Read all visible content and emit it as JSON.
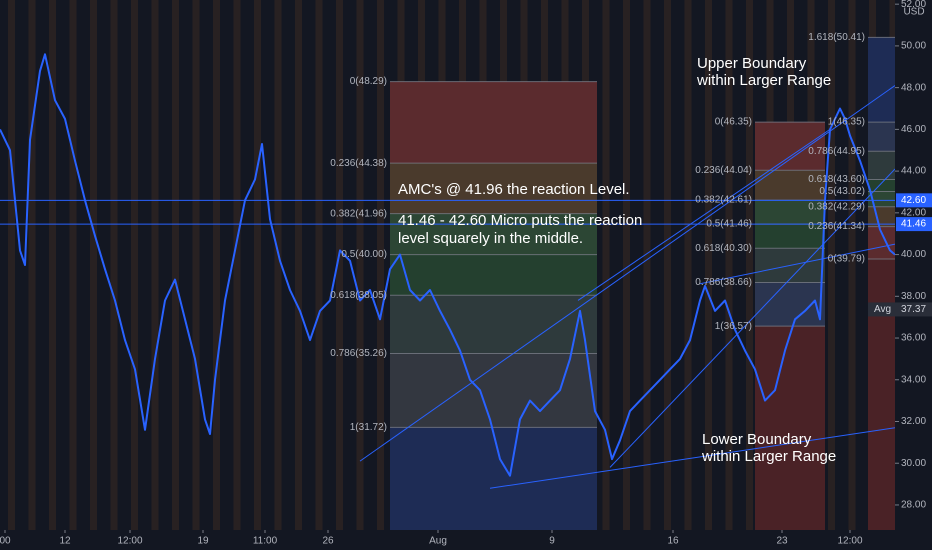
{
  "chart_data": {
    "type": "line",
    "currency": "USD",
    "color": "#2962ff",
    "xlim": [
      0,
      895
    ],
    "xticks": [
      {
        "value": 5,
        "label": "00"
      },
      {
        "value": 65,
        "label": "12"
      },
      {
        "value": 130,
        "label": "12:00"
      },
      {
        "value": 203,
        "label": "19"
      },
      {
        "value": 265,
        "label": "11:00"
      },
      {
        "value": 328,
        "label": "26"
      },
      {
        "value": 438,
        "label": "Aug"
      },
      {
        "value": 552,
        "label": "9"
      },
      {
        "value": 673,
        "label": "16"
      },
      {
        "value": 782,
        "label": "23"
      },
      {
        "value": 850,
        "label": "12:00"
      }
    ],
    "ylim": [
      26.8,
      52.2
    ],
    "yticks": [
      {
        "value": 28,
        "label": "28.00"
      },
      {
        "value": 30,
        "label": "30.00"
      },
      {
        "value": 32,
        "label": "32.00"
      },
      {
        "value": 34,
        "label": "34.00"
      },
      {
        "value": 36,
        "label": "36.00"
      },
      {
        "value": 38,
        "label": "38.00"
      },
      {
        "value": 40,
        "label": "40.00"
      },
      {
        "value": 42,
        "label": "42.00"
      },
      {
        "value": 44,
        "label": "44.00"
      },
      {
        "value": 46,
        "label": "46.00"
      },
      {
        "value": 48,
        "label": "48.00"
      },
      {
        "value": 50,
        "label": "50.00"
      },
      {
        "value": 52,
        "label": "52.00"
      }
    ],
    "x": [
      0,
      10,
      20,
      25,
      30,
      40,
      45,
      55,
      65,
      75,
      85,
      95,
      105,
      115,
      125,
      135,
      145,
      155,
      165,
      175,
      185,
      195,
      205,
      210,
      215,
      225,
      235,
      245,
      255,
      262,
      270,
      280,
      290,
      300,
      310,
      320,
      330,
      340,
      350,
      360,
      370,
      380,
      390,
      400,
      410,
      420,
      430,
      440,
      450,
      460,
      470,
      480,
      490,
      500,
      510,
      520,
      530,
      540,
      550,
      560,
      570,
      580,
      585,
      595,
      605,
      612,
      620,
      630,
      640,
      650,
      660,
      670,
      680,
      690,
      700,
      705,
      715,
      725,
      735,
      745,
      755,
      765,
      775,
      785,
      795,
      805,
      815,
      820,
      825,
      830,
      840,
      845,
      850,
      860,
      870,
      880,
      890,
      895
    ],
    "values": [
      46.0,
      45.0,
      40.2,
      39.5,
      45.5,
      48.8,
      49.6,
      47.4,
      46.5,
      44.5,
      42.6,
      40.9,
      39.3,
      37.8,
      35.9,
      34.5,
      31.6,
      35.0,
      37.8,
      38.8,
      36.9,
      35.0,
      32.1,
      31.4,
      34.0,
      37.8,
      40.2,
      42.6,
      43.6,
      45.3,
      41.7,
      39.7,
      38.3,
      37.3,
      35.9,
      37.3,
      37.8,
      40.2,
      39.7,
      37.8,
      38.3,
      36.9,
      39.3,
      40.0,
      38.3,
      37.8,
      38.3,
      37.3,
      36.4,
      35.4,
      34.0,
      33.5,
      32.1,
      30.2,
      29.4,
      32.1,
      33.0,
      32.5,
      33.0,
      33.5,
      35.0,
      37.3,
      35.9,
      32.5,
      31.6,
      30.2,
      31.1,
      32.5,
      33.0,
      33.5,
      34.0,
      34.5,
      35.0,
      35.9,
      37.8,
      38.5,
      37.3,
      37.8,
      36.4,
      35.4,
      34.5,
      33.0,
      33.5,
      35.4,
      36.9,
      37.3,
      37.8,
      36.9,
      42.6,
      46.0,
      47.0,
      46.5,
      45.7,
      44.5,
      43.1,
      41.2,
      40.2,
      40.0
    ],
    "levels": [
      {
        "value": 42.6,
        "label": "42.60"
      },
      {
        "value": 41.46,
        "label": "41.46"
      }
    ],
    "avg": {
      "label": "Avg",
      "value": 37.37
    },
    "fibs": [
      {
        "x_range": [
          390,
          597
        ],
        "levels": [
          {
            "value": 48.29,
            "label": "0(48.29)"
          },
          {
            "value": 44.38,
            "label": "0.236(44.38)"
          },
          {
            "value": 41.96,
            "label": "0.382(41.96)"
          },
          {
            "value": 40.0,
            "label": "0.5(40.00)"
          },
          {
            "value": 38.05,
            "label": "0.618(38.05)"
          },
          {
            "value": 35.26,
            "label": "0.786(35.26)"
          },
          {
            "value": 31.72,
            "label": "1(31.72)"
          }
        ],
        "colors": [
          "#5b2b2e",
          "#4a3a2c",
          "#2c4634",
          "#24402f",
          "#2e3a3c",
          "#333740"
        ],
        "below_color": "#1e2c55"
      },
      {
        "x_range": [
          755,
          825
        ],
        "levels": [
          {
            "value": 46.35,
            "label": "0(46.35)"
          },
          {
            "value": 44.04,
            "label": "0.236(44.04)"
          },
          {
            "value": 42.61,
            "label": "0.382(42.61)"
          },
          {
            "value": 41.46,
            "label": "0.5(41.46)"
          },
          {
            "value": 40.3,
            "label": "0.618(40.30)"
          },
          {
            "value": 38.66,
            "label": "0.786(38.66)"
          },
          {
            "value": 36.57,
            "label": "1(36.57)"
          }
        ],
        "colors": [
          "#5b2b2e",
          "#4a3a2c",
          "#2c4634",
          "#24402f",
          "#2e3a3c",
          "#2b3550"
        ],
        "below_color": "#4a2226"
      },
      {
        "x_range": [
          868,
          895
        ],
        "levels": [
          {
            "value": 50.41,
            "label": "1.618(50.41)"
          },
          {
            "value": 46.35,
            "label": "1(46.35)"
          },
          {
            "value": 44.95,
            "label": "0.786(44.95)"
          },
          {
            "value": 43.6,
            "label": "0.618(43.60)"
          },
          {
            "value": 43.02,
            "label": "0.5(43.02)"
          },
          {
            "value": 42.29,
            "label": "0.382(42.29)"
          },
          {
            "value": 41.34,
            "label": "0.236(41.34)"
          },
          {
            "value": 39.79,
            "label": "0(39.79)"
          }
        ],
        "colors": [
          "#1e2c55",
          "#2b3550",
          "#2e3a3c",
          "#24402f",
          "#2c4634",
          "#4a3a2c",
          "#5b2b2e"
        ],
        "below_color": "#4a2226"
      }
    ],
    "trendlines": [
      {
        "x": [
          360,
          895
        ],
        "values": [
          30.1,
          48.1
        ]
      },
      {
        "x": [
          490,
          895
        ],
        "values": [
          28.8,
          31.7
        ]
      },
      {
        "x": [
          610,
          895
        ],
        "values": [
          29.8,
          44.1
        ]
      },
      {
        "x": [
          578,
          830
        ],
        "values": [
          37.8,
          46.0
        ]
      },
      {
        "x": [
          700,
          895
        ],
        "values": [
          38.6,
          40.5
        ]
      }
    ],
    "annotations": {
      "reaction": "AMC's @ 41.96 the reaction Level.",
      "micro": [
        "41.46 - 42.60 Micro puts the reaction",
        "level squarely in the middle."
      ],
      "upper": [
        "Upper Boundary",
        "within Larger Range"
      ],
      "lower": [
        "Lower Boundary",
        "within Larger Range"
      ]
    }
  }
}
